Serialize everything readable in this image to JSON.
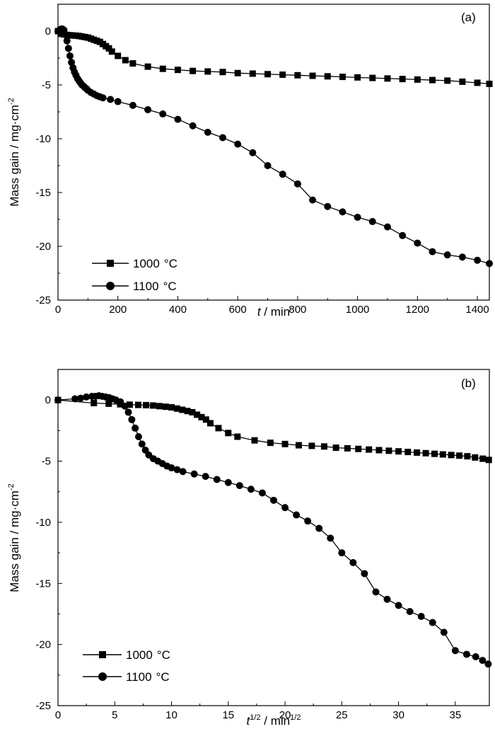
{
  "chart_data": [
    {
      "type": "line",
      "panel_label": "(a)",
      "xlabel_italic": "t",
      "xlabel_rest": " / min",
      "ylabel_main": "Mass gain / mg·cm",
      "ylabel_sup": "-2",
      "xlim": [
        0,
        1440
      ],
      "ylim": [
        -25,
        2.5
      ],
      "xticks": [
        0,
        200,
        400,
        600,
        800,
        1000,
        1200,
        1400
      ],
      "xtick_labels": [
        "0",
        "200",
        "400",
        "600",
        "800",
        "1000",
        "1200",
        "1400"
      ],
      "yticks": [
        0,
        -5,
        -10,
        -15,
        -20,
        -25
      ],
      "ytick_labels": [
        "0",
        "-5",
        "-10",
        "-15",
        "-20",
        "-25"
      ],
      "legend_position": "bottom-left",
      "series": [
        {
          "name": "1000 °C",
          "label_number": "1000",
          "label_unit": "°C",
          "marker": "square",
          "x": [
            0,
            10,
            20,
            30,
            40,
            50,
            60,
            70,
            80,
            90,
            100,
            110,
            120,
            130,
            140,
            150,
            160,
            170,
            180,
            200,
            225,
            250,
            300,
            350,
            400,
            450,
            500,
            550,
            600,
            650,
            700,
            750,
            800,
            850,
            900,
            950,
            1000,
            1050,
            1100,
            1150,
            1200,
            1250,
            1300,
            1350,
            1400,
            1440
          ],
          "y": [
            0,
            -0.25,
            -0.3,
            -0.35,
            -0.38,
            -0.4,
            -0.42,
            -0.45,
            -0.5,
            -0.55,
            -0.6,
            -0.7,
            -0.8,
            -0.9,
            -1.0,
            -1.2,
            -1.4,
            -1.6,
            -1.9,
            -2.3,
            -2.7,
            -3.0,
            -3.3,
            -3.5,
            -3.6,
            -3.7,
            -3.75,
            -3.8,
            -3.9,
            -3.95,
            -4.0,
            -4.05,
            -4.1,
            -4.15,
            -4.2,
            -4.25,
            -4.3,
            -4.35,
            -4.4,
            -4.45,
            -4.5,
            -4.55,
            -4.6,
            -4.7,
            -4.8,
            -4.9
          ]
        },
        {
          "name": "1100 °C",
          "label_number": "1100",
          "label_unit": "°C",
          "marker": "circle",
          "x": [
            0,
            5,
            10,
            15,
            20,
            25,
            30,
            35,
            40,
            45,
            50,
            55,
            60,
            65,
            70,
            75,
            80,
            85,
            90,
            95,
            100,
            110,
            120,
            130,
            140,
            150,
            175,
            200,
            250,
            300,
            350,
            400,
            450,
            500,
            550,
            600,
            650,
            700,
            750,
            800,
            850,
            900,
            950,
            1000,
            1050,
            1100,
            1150,
            1200,
            1250,
            1300,
            1350,
            1400,
            1440
          ],
          "y": [
            0,
            0.1,
            0.2,
            0.2,
            0.1,
            -0.3,
            -0.9,
            -1.6,
            -2.3,
            -2.9,
            -3.4,
            -3.8,
            -4.1,
            -4.4,
            -4.6,
            -4.8,
            -5.0,
            -5.1,
            -5.25,
            -5.35,
            -5.5,
            -5.7,
            -5.85,
            -6.0,
            -6.1,
            -6.2,
            -6.35,
            -6.55,
            -6.9,
            -7.3,
            -7.7,
            -8.2,
            -8.8,
            -9.4,
            -9.9,
            -10.5,
            -11.3,
            -12.5,
            -13.3,
            -14.2,
            -15.7,
            -16.3,
            -16.8,
            -17.3,
            -17.7,
            -18.2,
            -19.0,
            -19.7,
            -20.5,
            -20.8,
            -21.0,
            -21.3,
            -21.6
          ]
        }
      ]
    },
    {
      "type": "line",
      "panel_label": "(b)",
      "xlabel_main": "t",
      "xlabel_sup": "1/2",
      "xlabel_mid": " / min",
      "xlabel_sup2": "1/2",
      "ylabel_main": "Mass gain / mg·cm",
      "ylabel_sup": "-2",
      "xlim": [
        0,
        38
      ],
      "ylim": [
        -25,
        2.5
      ],
      "xticks": [
        0,
        5,
        10,
        15,
        20,
        25,
        30,
        35
      ],
      "xtick_labels": [
        "0",
        "5",
        "10",
        "15",
        "20",
        "25",
        "30",
        "35"
      ],
      "yticks": [
        0,
        -5,
        -10,
        -15,
        -20,
        -25
      ],
      "ytick_labels": [
        "0",
        "-5",
        "-10",
        "-15",
        "-20",
        "-25"
      ],
      "legend_position": "bottom-left",
      "series": [
        {
          "name": "1000 °C",
          "label_number": "1000",
          "label_unit": "°C",
          "marker": "square",
          "x": [
            0,
            3.16,
            4.47,
            5.48,
            6.32,
            7.07,
            7.75,
            8.37,
            8.94,
            9.49,
            10.0,
            10.49,
            10.95,
            11.4,
            11.83,
            12.25,
            12.65,
            13.04,
            13.42,
            14.14,
            15.0,
            15.81,
            17.32,
            18.71,
            20.0,
            21.21,
            22.36,
            23.45,
            24.49,
            25.5,
            26.46,
            27.39,
            28.28,
            29.15,
            30.0,
            30.82,
            31.62,
            32.4,
            33.17,
            33.91,
            34.64,
            35.36,
            36.06,
            36.74,
            37.42,
            37.95
          ],
          "y": [
            0,
            -0.25,
            -0.3,
            -0.35,
            -0.38,
            -0.4,
            -0.42,
            -0.45,
            -0.5,
            -0.55,
            -0.6,
            -0.7,
            -0.8,
            -0.9,
            -1.0,
            -1.2,
            -1.4,
            -1.6,
            -1.9,
            -2.3,
            -2.7,
            -3.0,
            -3.3,
            -3.5,
            -3.6,
            -3.7,
            -3.75,
            -3.8,
            -3.9,
            -3.95,
            -4.0,
            -4.05,
            -4.1,
            -4.15,
            -4.2,
            -4.25,
            -4.3,
            -4.35,
            -4.4,
            -4.45,
            -4.5,
            -4.55,
            -4.6,
            -4.7,
            -4.8,
            -4.9
          ]
        },
        {
          "name": "1100 °C",
          "label_number": "1100",
          "label_unit": "°C",
          "marker": "circle",
          "x": [
            0,
            1.5,
            2.0,
            2.5,
            3.0,
            3.3,
            3.6,
            3.9,
            4.2,
            4.5,
            4.8,
            5.1,
            5.5,
            5.9,
            6.2,
            6.5,
            6.8,
            7.1,
            7.4,
            7.7,
            8.0,
            8.4,
            8.8,
            9.2,
            9.6,
            10.0,
            10.5,
            11.0,
            12.0,
            13.0,
            14.0,
            15.0,
            16.0,
            17.0,
            18.0,
            19.0,
            20.0,
            21.0,
            22.0,
            23.0,
            24.0,
            25.0,
            26.0,
            27.0,
            28.0,
            29.0,
            30.0,
            31.0,
            32.0,
            33.0,
            34.0,
            35.0,
            36.0,
            36.8,
            37.4,
            37.9
          ],
          "y": [
            0,
            0.1,
            0.15,
            0.25,
            0.3,
            0.3,
            0.35,
            0.3,
            0.25,
            0.2,
            0.1,
            0.0,
            -0.15,
            -0.5,
            -1.0,
            -1.6,
            -2.3,
            -3.0,
            -3.6,
            -4.1,
            -4.5,
            -4.8,
            -5.0,
            -5.2,
            -5.4,
            -5.55,
            -5.7,
            -5.85,
            -6.05,
            -6.25,
            -6.5,
            -6.75,
            -7.0,
            -7.3,
            -7.6,
            -8.2,
            -8.8,
            -9.4,
            -9.9,
            -10.5,
            -11.3,
            -12.5,
            -13.3,
            -14.2,
            -15.7,
            -16.3,
            -16.8,
            -17.3,
            -17.7,
            -18.2,
            -19.0,
            -20.5,
            -20.8,
            -21.0,
            -21.3,
            -21.6
          ]
        }
      ]
    }
  ]
}
